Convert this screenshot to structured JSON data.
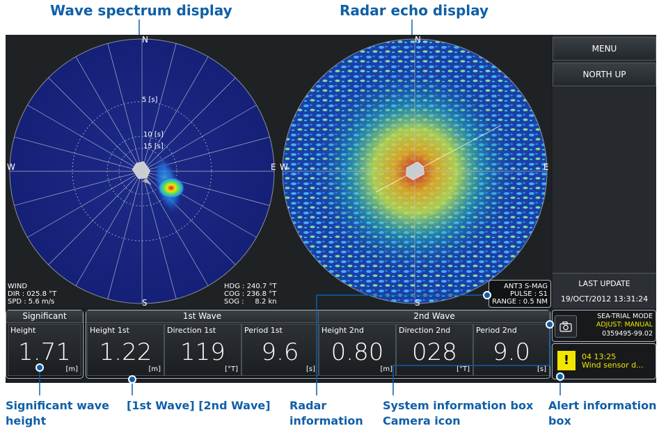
{
  "callouts": {
    "wave_spectrum": "Wave spectrum display",
    "radar_echo": "Radar echo display",
    "sig_wave_1": "Significant wave",
    "sig_wave_2": "height",
    "waves": "[1st Wave] [2nd Wave]",
    "radar_info_1": "Radar",
    "radar_info_2": "information",
    "sysinfo_1": "System information box",
    "sysinfo_2": "Camera icon",
    "alert_1": "Alert information",
    "alert_2": "box"
  },
  "spectrum": {
    "north": "N",
    "south": "S",
    "west": "W",
    "east": "E",
    "ring_5": "5 [s]",
    "ring_10": "10 [s]",
    "ring_15": "15 [s]",
    "wind_label": "WIND",
    "wind_dir": "DIR : 025.8 °T",
    "wind_spd": "SPD : 5.6 m/s",
    "hdg": "HDG : 240.7 °T",
    "cog": "COG : 236.8 °T",
    "sog": "SOG :     8.2 kn"
  },
  "radar": {
    "north": "N",
    "south": "S",
    "west": "W",
    "east": "E",
    "ant": "ANT3 S-MAG",
    "pulse": "PULSE : S1",
    "range": "RANGE : 0.5 NM"
  },
  "side": {
    "menu": "MENU",
    "north_up": "NORTH UP",
    "last_update_label": "LAST UPDATE",
    "last_update_value": "19/OCT/2012 13:31:24"
  },
  "significant": {
    "header": "Significant",
    "label": "Height",
    "value": "1.71",
    "unit": "[m]"
  },
  "wave1": {
    "header": "1st Wave",
    "height_label": "Height 1st",
    "height_value": "1.22",
    "height_unit": "[m]",
    "dir_label": "Direction 1st",
    "dir_value": "119",
    "dir_unit": "[°T]",
    "period_label": "Period 1st",
    "period_value": "9.6",
    "period_unit": "[s]"
  },
  "wave2": {
    "header": "2nd Wave",
    "height_label": "Height 2nd",
    "height_value": "0.80",
    "height_unit": "[m]",
    "dir_label": "Direction 2nd",
    "dir_value": "028",
    "dir_unit": "[°T]",
    "period_label": "Period 2nd",
    "period_value": "9.0",
    "period_unit": "[s]"
  },
  "system": {
    "mode": "SEA-TRIAL MODE",
    "adjust": "ADJUST: MANUAL",
    "serial": "0359495-99.02",
    "camera_icon": "camera-icon"
  },
  "alert": {
    "time": "04 13:25",
    "message": "Wind sensor d...",
    "icon": "warning-icon",
    "color": "#f2e600"
  }
}
